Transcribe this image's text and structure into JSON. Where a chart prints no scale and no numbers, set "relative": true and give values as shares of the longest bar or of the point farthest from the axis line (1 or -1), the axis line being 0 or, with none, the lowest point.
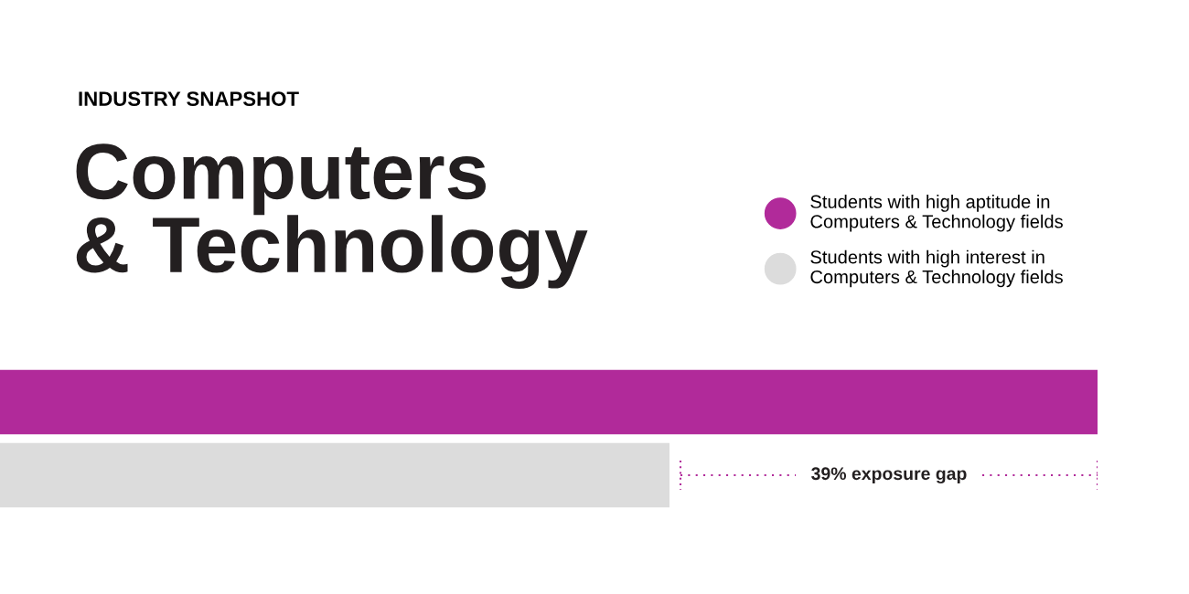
{
  "chart_data": {
    "type": "bar",
    "orientation": "horizontal",
    "relative": true,
    "subtitle": "INDUSTRY SNAPSHOT",
    "title": "Computers\n& Technology",
    "categories": [
      null
    ],
    "series": [
      {
        "name": "Students with high aptitude in\nComputers & Technology fields",
        "color": "#b12a9a",
        "values": [
          1
        ]
      },
      {
        "name": "Students with high interest in\nComputers & Technology fields",
        "color": "#dcdcdc",
        "values": [
          0.61
        ]
      }
    ],
    "annotations": [
      "39% exposure gap"
    ],
    "legend": "top right"
  }
}
